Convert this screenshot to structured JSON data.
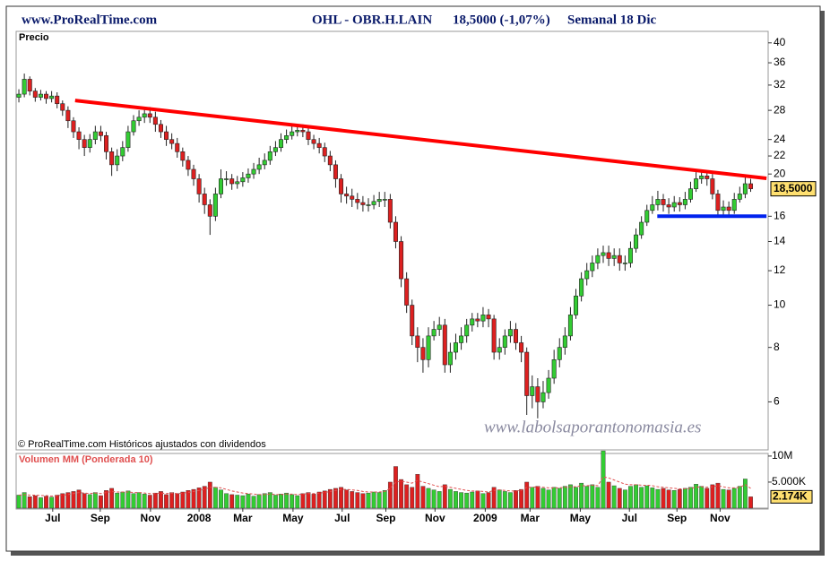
{
  "chart_data": [
    {
      "type": "candlestick",
      "site": "www.ProRealTime.com",
      "title": "OHL - OBR.H.LAIN",
      "quote": "18,5000 (-1,07%)",
      "period": "Semanal  18 Dic",
      "label": "Precio",
      "note": "© ProRealTime.com  Históricos ajustados con dividendos",
      "watermark": "www.labolsaporantonomasia.es",
      "up_color": "#33cc33",
      "down_color": "#dd2020",
      "log_scale": true,
      "ylim": [
        4.7,
        42.5
      ],
      "yticks": [
        6,
        8,
        10,
        12,
        14,
        16,
        20,
        22,
        24,
        28,
        32,
        36,
        40
      ],
      "xlim": [
        -0.5,
        137.2
      ],
      "xticks": [
        {
          "value": 6.2,
          "label": "Jul"
        },
        {
          "value": 14.9,
          "label": "Sep"
        },
        {
          "value": 24.1,
          "label": "Nov"
        },
        {
          "value": 33,
          "label": "2008"
        },
        {
          "value": 41,
          "label": "Mar"
        },
        {
          "value": 50.2,
          "label": "May"
        },
        {
          "value": 59.2,
          "label": "Jul"
        },
        {
          "value": 67.2,
          "label": "Sep"
        },
        {
          "value": 76.2,
          "label": "Nov"
        },
        {
          "value": 85.4,
          "label": "2009"
        },
        {
          "value": 93.6,
          "label": "Mar"
        },
        {
          "value": 102.8,
          "label": "May"
        },
        {
          "value": 111.8,
          "label": "Jul"
        },
        {
          "value": 120.5,
          "label": "Sep"
        },
        {
          "value": 128.4,
          "label": "Nov"
        }
      ],
      "open": [
        30,
        30.5,
        33,
        31,
        30,
        30.5,
        29.8,
        30.2,
        29,
        28,
        26.5,
        25,
        24,
        23,
        24,
        25,
        24.5,
        22.5,
        21,
        22,
        23,
        25,
        26.5,
        27,
        27.5,
        27,
        26,
        25,
        24,
        23.5,
        22.5,
        21.5,
        20.5,
        19.5,
        18,
        17,
        16,
        18,
        19.5,
        19.5,
        19,
        19.2,
        19.6,
        20,
        20.5,
        21,
        21.5,
        22.5,
        23,
        24,
        24.5,
        25,
        25.2,
        25,
        24,
        23.5,
        23,
        22,
        21,
        19.5,
        18,
        17.8,
        17.5,
        17.2,
        17,
        17,
        17.3,
        17.5,
        17.5,
        15.5,
        14,
        11.5,
        10,
        8.5,
        8,
        7.5,
        8.5,
        8.8,
        9,
        7.3,
        7.8,
        8.2,
        8.5,
        9,
        9.3,
        9.2,
        9.5,
        9.3,
        7.8,
        8,
        8.5,
        8.8,
        8.2,
        7.8,
        6.2,
        6.5,
        6,
        6.3,
        6.8,
        7.5,
        8,
        8.5,
        9.5,
        10.5,
        11.5,
        12,
        12.5,
        13,
        13.2,
        12.8,
        13,
        12.5,
        12.5,
        13.5,
        14.5,
        15.5,
        16.5,
        17,
        17.5,
        17,
        16.8,
        17.2,
        17,
        17.5,
        18.5,
        19.5,
        19.8,
        19.5,
        18,
        16.5,
        16.8,
        16.5,
        17.5,
        18,
        19
      ],
      "high": [
        31.3,
        34,
        33.5,
        31.5,
        31.2,
        31,
        31,
        30.8,
        29.5,
        28.6,
        27,
        25.6,
        24.6,
        24.7,
        25.8,
        25.8,
        25,
        23,
        22.8,
        23.8,
        25.8,
        27.3,
        28,
        28.5,
        28.5,
        27.8,
        26.6,
        25.8,
        24.8,
        24.2,
        23,
        22,
        21,
        20,
        18.6,
        17.5,
        18.6,
        20.5,
        20.3,
        20,
        19.8,
        20.2,
        20.6,
        21.2,
        21.8,
        22.3,
        23.2,
        23.8,
        24.8,
        25.3,
        25.8,
        26,
        26,
        25.6,
        24.6,
        24.2,
        23.6,
        22.6,
        21.5,
        20,
        18.7,
        18.5,
        18.1,
        17.8,
        17.6,
        17.9,
        18.2,
        18.2,
        18,
        16,
        14.4,
        11.9,
        10.3,
        8.9,
        8.4,
        8.9,
        9.2,
        9.4,
        9.3,
        8.2,
        8.6,
        8.9,
        9.3,
        9.6,
        9.6,
        9.9,
        9.8,
        9.5,
        8.4,
        8.8,
        9.2,
        9.1,
        8.5,
        8,
        6.9,
        6.8,
        6.7,
        7.1,
        7.9,
        8.4,
        8.9,
        9.9,
        10.9,
        11.9,
        12.5,
        13,
        13.5,
        13.7,
        13.7,
        13.5,
        13.5,
        13,
        14,
        15,
        16,
        17,
        17.8,
        18.3,
        18,
        17.6,
        17.8,
        17.7,
        18.2,
        19.2,
        20.2,
        20.4,
        20.3,
        20,
        18.4,
        17.4,
        17.3,
        18.1,
        18.7,
        19.8,
        19.5
      ],
      "low": [
        29.2,
        30,
        30.3,
        29.3,
        29.5,
        29,
        29.2,
        28.3,
        27.2,
        25.5,
        24.2,
        22.8,
        22,
        22.4,
        23.4,
        23.8,
        21.6,
        19.8,
        20.3,
        21.4,
        22.5,
        24.5,
        25.8,
        26.2,
        26.2,
        25,
        24.2,
        23.2,
        22.8,
        21.8,
        20.8,
        19.8,
        18.8,
        17.2,
        16.2,
        14.5,
        15.6,
        17.6,
        18.8,
        18.4,
        18.5,
        18.7,
        19.1,
        19.5,
        20,
        20.5,
        21,
        22,
        22.5,
        23.5,
        24,
        24.4,
        24.3,
        23.3,
        22.8,
        22.3,
        21.3,
        20.3,
        18.6,
        17.2,
        17.1,
        16.8,
        16.6,
        16.4,
        16.4,
        16.6,
        16.8,
        16.8,
        15,
        13.5,
        11,
        9.6,
        8.1,
        7.4,
        7,
        7.2,
        8.3,
        8.5,
        7,
        7,
        7.5,
        7.9,
        8.2,
        8.7,
        8.9,
        8.9,
        8.9,
        7.5,
        7.5,
        7.7,
        8.2,
        7.9,
        7.4,
        5.6,
        5.8,
        5.5,
        5.8,
        6.1,
        6.6,
        7.2,
        7.7,
        8.3,
        9.3,
        10.2,
        11.1,
        11.6,
        12.1,
        12.5,
        12.3,
        12.3,
        12,
        12,
        12.2,
        13.2,
        14.2,
        15.2,
        16.2,
        16.5,
        16.4,
        16.2,
        16.4,
        16.4,
        16.6,
        17.2,
        18.2,
        19,
        18.8,
        17.5,
        16,
        16.1,
        16,
        16.2,
        17.2,
        17.6,
        18.2
      ],
      "close": [
        30.5,
        33,
        31,
        30,
        30.5,
        29.8,
        30.2,
        29,
        28,
        26.5,
        25,
        24,
        23,
        24,
        25,
        24.5,
        22.5,
        21,
        22,
        23,
        25,
        26.5,
        27,
        27.5,
        27,
        26,
        25,
        24,
        23.5,
        22.5,
        21.5,
        20.5,
        19.5,
        18,
        17,
        16,
        18,
        19.5,
        19.5,
        19,
        19.2,
        19.6,
        20,
        20.5,
        21,
        21.5,
        22.5,
        23,
        24,
        24.5,
        25,
        25.2,
        25,
        24,
        23.5,
        23,
        22,
        21,
        19.5,
        18,
        17.8,
        17.5,
        17.2,
        17,
        17,
        17.3,
        17.5,
        17.5,
        15.5,
        14,
        11.5,
        10,
        8.5,
        8,
        7.5,
        8.5,
        8.8,
        9,
        7.3,
        7.8,
        8.2,
        8.5,
        9,
        9.3,
        9.2,
        9.5,
        9.3,
        7.8,
        8,
        8.5,
        8.8,
        8.2,
        7.8,
        6.2,
        6.5,
        6,
        6.3,
        6.8,
        7.5,
        8,
        8.5,
        9.5,
        10.5,
        11.5,
        12,
        12.5,
        13,
        13.2,
        12.8,
        13,
        12.5,
        12.5,
        13.5,
        14.5,
        15.5,
        16.5,
        17,
        17.5,
        17,
        16.8,
        17.2,
        17,
        17.5,
        18.5,
        19.5,
        19.8,
        19.5,
        18,
        16.5,
        16.8,
        16.5,
        17.5,
        18,
        19,
        18.5
      ],
      "lines": [
        {
          "color": "#ff0000",
          "x": [
            10.3,
            136.9
          ],
          "y": [
            29.5,
            19.55
          ]
        },
        {
          "color": "#0022ee",
          "x": [
            116.9,
            136.9
          ],
          "y": [
            16,
            16
          ]
        }
      ],
      "last": {
        "value": 18.5,
        "label": "18,5000"
      }
    },
    {
      "type": "bar",
      "title": "Volumen MM (Ponderada 10)",
      "ylim": [
        0,
        10.5
      ],
      "yticks": [
        {
          "value": 10,
          "label": "10M"
        },
        {
          "value": 5,
          "label": "5.000K"
        }
      ],
      "values": [
        2.5,
        3,
        2.2,
        2.4,
        2,
        2.3,
        2.1,
        2.5,
        2.8,
        3,
        3.2,
        3.5,
        2.8,
        2.6,
        3,
        2.4,
        3.4,
        3.8,
        2.9,
        3.1,
        3.3,
        2.8,
        3,
        2.7,
        2.5,
        2.9,
        3.2,
        2.6,
        3,
        2.8,
        3.1,
        3.4,
        3.6,
        3.9,
        4.2,
        5,
        4,
        3.5,
        2.8,
        2.6,
        2.5,
        2.4,
        2.7,
        2.3,
        2.6,
        2.8,
        3,
        2.5,
        2.7,
        2.9,
        2.6,
        2.4,
        2.8,
        3,
        2.7,
        3.1,
        3.3,
        3.6,
        3.8,
        4,
        3.5,
        3.2,
        3,
        2.8,
        2.9,
        3.1,
        3,
        3.4,
        5,
        8,
        5.5,
        4.5,
        4,
        6.5,
        4.2,
        3.8,
        3.5,
        3.2,
        4.5,
        3.6,
        3.2,
        3,
        2.9,
        3.1,
        3.3,
        2.8,
        3,
        4,
        3.5,
        3.2,
        3,
        3.4,
        3.6,
        5,
        4,
        4.2,
        3.8,
        3.5,
        4,
        3.8,
        4.2,
        4.5,
        4,
        4.8,
        4.2,
        4.5,
        4,
        11,
        5,
        4.3,
        3.8,
        3.5,
        4.2,
        4.5,
        4,
        4.3,
        3.9,
        3.6,
        3.8,
        3.5,
        3.4,
        3.6,
        3.8,
        4,
        4.6,
        4.2,
        3.8,
        4.5,
        4.8,
        3.6,
        3.5,
        3.8,
        4.2,
        5.6,
        2.174
      ],
      "ma": {
        "color": "#e05050",
        "values": [
          2.5,
          2.6,
          2.5,
          2.5,
          2.4,
          2.4,
          2.3,
          2.4,
          2.5,
          2.6,
          2.8,
          3,
          2.9,
          2.8,
          2.9,
          2.8,
          3,
          3.2,
          3.1,
          3.1,
          3.1,
          3,
          3,
          2.9,
          2.8,
          2.8,
          2.9,
          2.8,
          2.9,
          2.8,
          2.9,
          3,
          3.2,
          3.4,
          3.6,
          4,
          4,
          3.9,
          3.6,
          3.3,
          3.1,
          2.9,
          2.8,
          2.7,
          2.6,
          2.6,
          2.7,
          2.6,
          2.6,
          2.7,
          2.7,
          2.6,
          2.7,
          2.8,
          2.8,
          2.9,
          3,
          3.2,
          3.4,
          3.6,
          3.6,
          3.5,
          3.4,
          3.2,
          3.1,
          3.1,
          3.1,
          3.2,
          3.8,
          5,
          5.2,
          5,
          4.8,
          5.3,
          5,
          4.7,
          4.4,
          4.1,
          4.2,
          4,
          3.8,
          3.6,
          3.4,
          3.3,
          3.3,
          3.2,
          3.1,
          3.4,
          3.5,
          3.4,
          3.3,
          3.3,
          3.4,
          4,
          4,
          4.1,
          4,
          3.9,
          3.9,
          3.9,
          4,
          4.1,
          4.1,
          4.3,
          4.3,
          4.4,
          4.3,
          6,
          5.8,
          5.4,
          5,
          4.6,
          4.5,
          4.5,
          4.4,
          4.4,
          4.3,
          4.1,
          4,
          3.9,
          3.8,
          3.7,
          3.7,
          3.8,
          4,
          4.1,
          4,
          4.1,
          4.3,
          4.1,
          3.9,
          3.9,
          4,
          4.5,
          3.8
        ]
      },
      "last": {
        "value": 2.174,
        "label": "2.174K"
      }
    }
  ]
}
